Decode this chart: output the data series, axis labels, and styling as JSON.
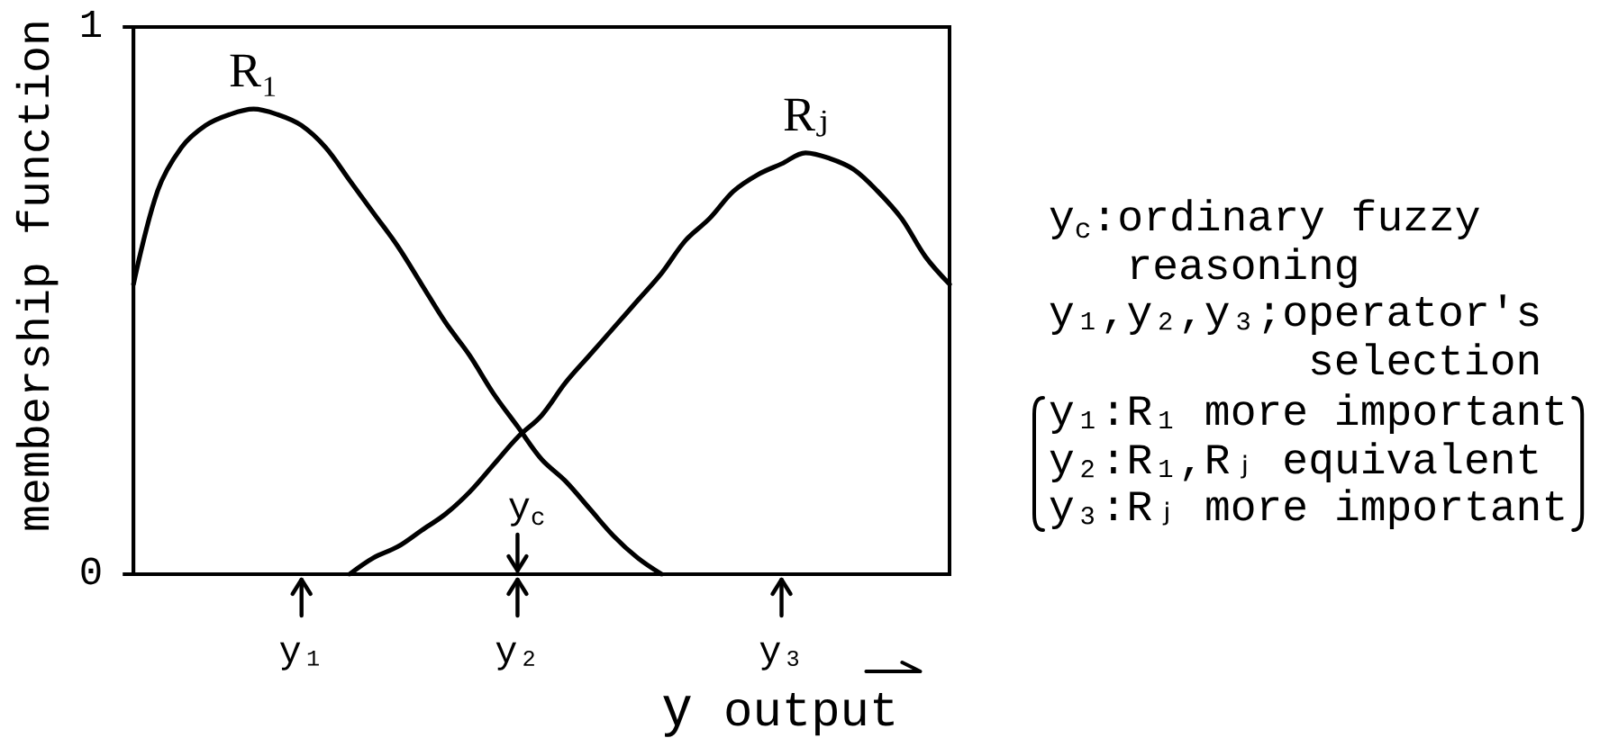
{
  "chart_data": {
    "type": "line",
    "categories": [
      null,
      null,
      null,
      null,
      null,
      null,
      null,
      "y₁",
      null,
      null,
      null,
      null,
      null,
      null,
      null,
      null,
      "y₂",
      null,
      null,
      null,
      null,
      null,
      null,
      null,
      null,
      null,
      null,
      "y₃",
      null,
      null,
      null,
      null,
      null,
      null,
      null
    ],
    "series": [
      {
        "name": "R₁",
        "color": "#000000",
        "values": [
          0.53,
          0.7,
          0.78,
          0.82,
          0.84,
          0.85,
          0.84,
          0.82,
          0.78,
          0.72,
          0.66,
          0.6,
          0.53,
          0.46,
          0.4,
          0.33,
          0.27,
          0.21,
          0.17,
          0.12,
          0.07,
          0.03,
          0,
          null,
          null,
          null,
          null,
          null,
          null,
          null,
          null,
          null,
          null,
          null,
          null
        ]
      },
      {
        "name": "Rⱼ",
        "color": "#000000",
        "values": [
          null,
          null,
          null,
          null,
          null,
          null,
          null,
          null,
          null,
          0,
          0.03,
          0.05,
          0.08,
          0.11,
          0.15,
          0.2,
          0.25,
          0.29,
          0.35,
          0.4,
          0.45,
          0.5,
          0.55,
          0.61,
          0.65,
          0.7,
          0.73,
          0.75,
          0.77,
          0.76,
          0.74,
          0.7,
          0.65,
          0.58,
          0.53
        ]
      }
    ],
    "ylim": [
      0,
      1
    ],
    "yticks": [
      0,
      1
    ],
    "ylabel": "membership function",
    "xlabel": "y output",
    "annotations": [
      "y$_{c}$",
      "y$_{c}$:ordinary fuzzy reasoning",
      "y₁,y₂,y₃;operator's selection",
      "y₁:R₁ more important",
      "y₂:R₁,Rⱼ equivalent",
      "y₃:Rⱼ more important"
    ],
    "grid": false,
    "legend": false,
    "marker": "none",
    "line_style": "solid"
  }
}
